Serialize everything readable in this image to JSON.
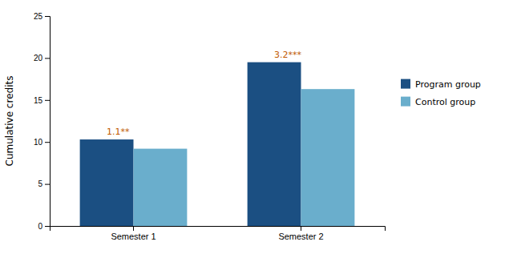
{
  "chart_data": {
    "type": "bar",
    "categories": [
      "Semester 1",
      "Semester 2"
    ],
    "series": [
      {
        "name": "Program group",
        "color": "#1b4f82",
        "values": [
          10.3,
          19.5
        ]
      },
      {
        "name": "Control group",
        "color": "#6aaecc",
        "values": [
          9.2,
          16.3
        ]
      }
    ],
    "ylabel": "Cumulative credits",
    "ylim": [
      0,
      25
    ],
    "yticks": [
      0,
      5,
      10,
      15,
      20,
      25
    ],
    "annotations": [
      {
        "text": "1.1**",
        "x": "Semester 1",
        "y": 10.3,
        "color": "#c05800"
      },
      {
        "text": "3.2***",
        "x": "Semester 2",
        "y": 19.5,
        "color": "#c05800"
      }
    ],
    "grid": false,
    "legend": "right"
  }
}
